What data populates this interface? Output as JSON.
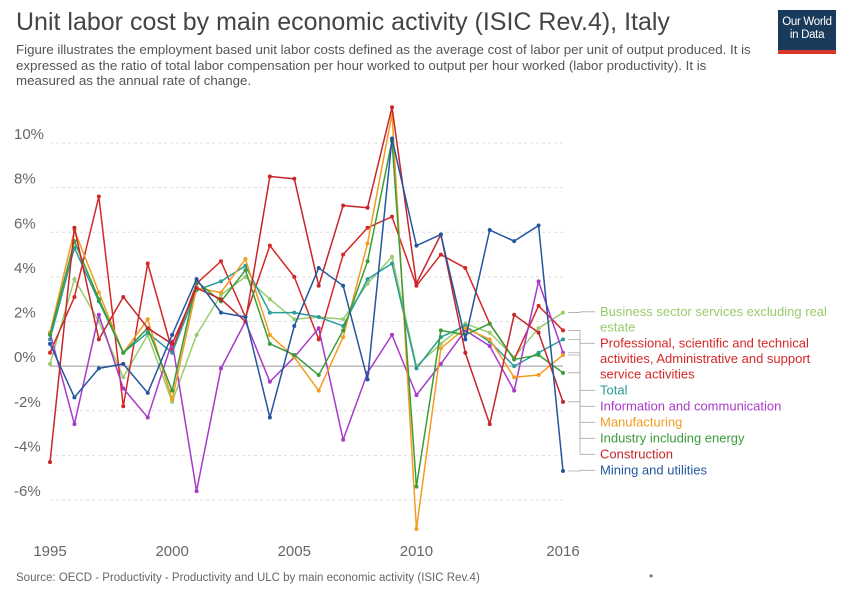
{
  "header": {
    "title": "Unit labor cost by main economic activity (ISIC Rev.4), Italy",
    "subtitle": "Figure illustrates the employment based unit labor costs defined as the average cost of labor per unit of output produced. It is expressed as the ratio of total labor compensation per hour worked to output per hour worked (labor productivity). It is measured as the annual rate of change."
  },
  "logo": {
    "line1": "Our World",
    "line2": "in Data",
    "bg_color": "#1a3a5c",
    "accent_color": "#d9352a"
  },
  "footer": {
    "source": "Source: OECD - Productivity - Productivity and ULC by main economic activity (ISIC Rev.4)",
    "dot": "•"
  },
  "chart_data": {
    "type": "line",
    "x": [
      1995,
      1996,
      1997,
      1998,
      1999,
      2000,
      2001,
      2002,
      2003,
      2004,
      2005,
      2006,
      2007,
      2008,
      2009,
      2010,
      2011,
      2012,
      2013,
      2014,
      2015,
      2016
    ],
    "x_ticks": [
      1995,
      2000,
      2005,
      2010,
      2016
    ],
    "x_tick_labels": [
      "1995",
      "2000",
      "2005",
      "2010",
      "2016"
    ],
    "y_ticks": [
      -6,
      -4,
      -2,
      0,
      2,
      4,
      6,
      8,
      10
    ],
    "y_tick_labels": [
      "-6%",
      "-4%",
      "-2%",
      "0%",
      "2%",
      "4%",
      "6%",
      "8%",
      "10%"
    ],
    "ylim": [
      -7.5,
      11.5
    ],
    "xlim": [
      1995,
      2016
    ],
    "grid": "horizontal-dotted",
    "legend": "right-end-labels",
    "series": [
      {
        "name": "Business sector services excluding real estate",
        "label_lines": [
          "Business sector services excluding real",
          "estate"
        ],
        "color": "#99cc6e",
        "values": [
          0.1,
          3.9,
          2.0,
          -0.5,
          1.4,
          -1.6,
          1.4,
          3.2,
          4.0,
          3.0,
          2.1,
          2.2,
          2.1,
          3.7,
          4.9,
          0.0,
          1.0,
          1.9,
          1.5,
          0.4,
          1.7,
          2.4
        ]
      },
      {
        "name": "Professional, scientific and technical activities, Administrative and support service activities",
        "label_lines": [
          "Professional, scientific and technical",
          "activities, Administrative and support",
          "service activities"
        ],
        "color": "#d62728",
        "values": [
          0.6,
          3.1,
          7.6,
          -1.8,
          4.6,
          0.7,
          3.7,
          4.7,
          2.2,
          5.4,
          4.0,
          1.2,
          5.0,
          6.2,
          6.7,
          3.6,
          5.0,
          4.4,
          1.9,
          0.3,
          2.7,
          1.6
        ]
      },
      {
        "name": "Total",
        "label_lines": [
          "Total"
        ],
        "color": "#2a9d9a",
        "values": [
          1.2,
          5.3,
          2.9,
          0.6,
          1.5,
          0.6,
          3.4,
          3.8,
          4.5,
          2.4,
          2.4,
          2.2,
          1.8,
          3.9,
          4.6,
          -0.1,
          1.3,
          1.8,
          1.1,
          0.0,
          0.6,
          1.2
        ]
      },
      {
        "name": "Information and communication",
        "label_lines": [
          "Information and communication"
        ],
        "color": "#a83ac9",
        "values": [
          1.5,
          -2.6,
          2.3,
          -1.0,
          -2.3,
          1.1,
          -5.6,
          -0.1,
          2.0,
          -0.7,
          0.4,
          1.7,
          -3.3,
          -0.3,
          1.4,
          -1.3,
          0.1,
          1.6,
          0.9,
          -1.1,
          3.8,
          0.6
        ]
      },
      {
        "name": "Manufacturing",
        "label_lines": [
          "Manufacturing"
        ],
        "color": "#f39c1f",
        "values": [
          1.5,
          6.1,
          3.3,
          0.6,
          2.1,
          -1.5,
          3.5,
          3.3,
          4.8,
          1.4,
          0.4,
          -1.1,
          1.3,
          5.5,
          11.3,
          -7.3,
          0.8,
          1.7,
          1.2,
          -0.5,
          -0.4,
          0.5
        ]
      },
      {
        "name": "Industry including energy",
        "label_lines": [
          "Industry including energy"
        ],
        "color": "#3a9c3a",
        "values": [
          1.4,
          5.6,
          3.0,
          0.6,
          1.7,
          -1.1,
          3.8,
          2.9,
          4.3,
          1.0,
          0.5,
          -0.4,
          1.6,
          4.7,
          10.1,
          -5.4,
          1.6,
          1.4,
          1.9,
          0.3,
          0.5,
          -0.3
        ]
      },
      {
        "name": "Construction",
        "label_lines": [
          "Construction"
        ],
        "color": "#c4262a",
        "values": [
          -4.3,
          6.2,
          1.2,
          3.1,
          1.7,
          1.0,
          3.5,
          3.0,
          2.0,
          8.5,
          8.4,
          3.6,
          7.2,
          7.1,
          11.6,
          3.7,
          5.9,
          0.6,
          -2.6,
          2.3,
          1.5,
          -1.6
        ]
      },
      {
        "name": "Mining and utilities",
        "label_lines": [
          "Mining and utilities"
        ],
        "color": "#2456a0",
        "values": [
          1.0,
          -1.4,
          -0.1,
          0.1,
          -1.2,
          1.4,
          3.9,
          2.4,
          2.2,
          -2.3,
          1.8,
          4.4,
          3.6,
          -0.6,
          10.2,
          5.4,
          5.9,
          1.2,
          6.1,
          5.6,
          6.3,
          -4.7
        ]
      }
    ]
  }
}
